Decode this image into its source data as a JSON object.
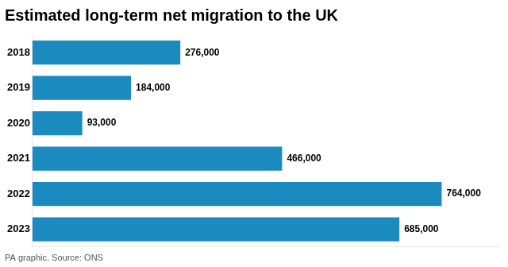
{
  "chart_data": {
    "type": "bar",
    "orientation": "horizontal",
    "title": "Estimated long-term net migration to the UK",
    "annotations": [
      "PA graphic. Source: ONS"
    ],
    "categories": [
      "2018",
      "2019",
      "2020",
      "2021",
      "2022",
      "2023"
    ],
    "values": [
      276000,
      184000,
      93000,
      466000,
      764000,
      685000
    ],
    "value_labels": [
      "276,000",
      "184,000",
      "93,000",
      "466,000",
      "764,000",
      "685,000"
    ],
    "data_labels": true,
    "color": "#1a8abf",
    "xlim": [
      0,
      870000
    ],
    "grid": false,
    "tick_labels": "y"
  }
}
